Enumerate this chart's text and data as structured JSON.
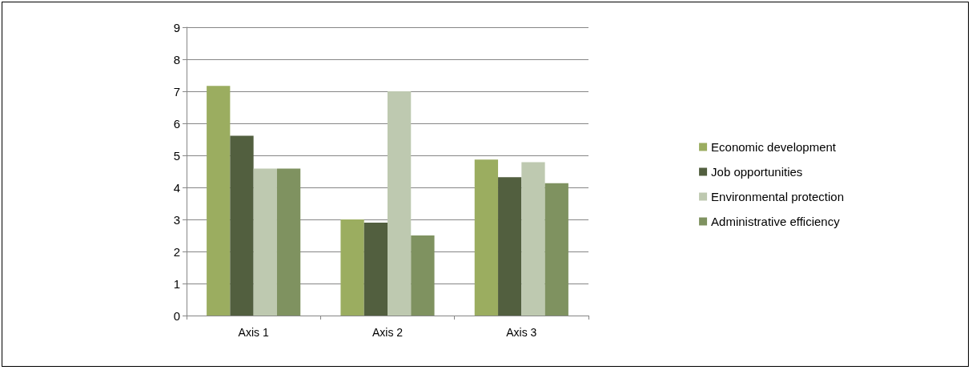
{
  "chart_data": {
    "type": "bar",
    "categories": [
      "Axis 1",
      "Axis 2",
      "Axis 3"
    ],
    "series": [
      {
        "name": "Economic development",
        "color": "#9bad60",
        "values": [
          7.17,
          3.0,
          4.87
        ]
      },
      {
        "name": "Job opportunities",
        "color": "#525f3f",
        "values": [
          5.61,
          2.9,
          4.32
        ]
      },
      {
        "name": "Environmental protection",
        "color": "#bec9b0",
        "values": [
          4.59,
          7.0,
          4.79
        ]
      },
      {
        "name": "Administrative efficiency",
        "color": "#7f9260",
        "values": [
          4.59,
          2.5,
          4.13
        ]
      }
    ],
    "ylim": [
      0,
      9
    ],
    "yticks": [
      0,
      1,
      2,
      3,
      4,
      5,
      6,
      7,
      8,
      9
    ],
    "grid": "y",
    "legend": "right"
  }
}
